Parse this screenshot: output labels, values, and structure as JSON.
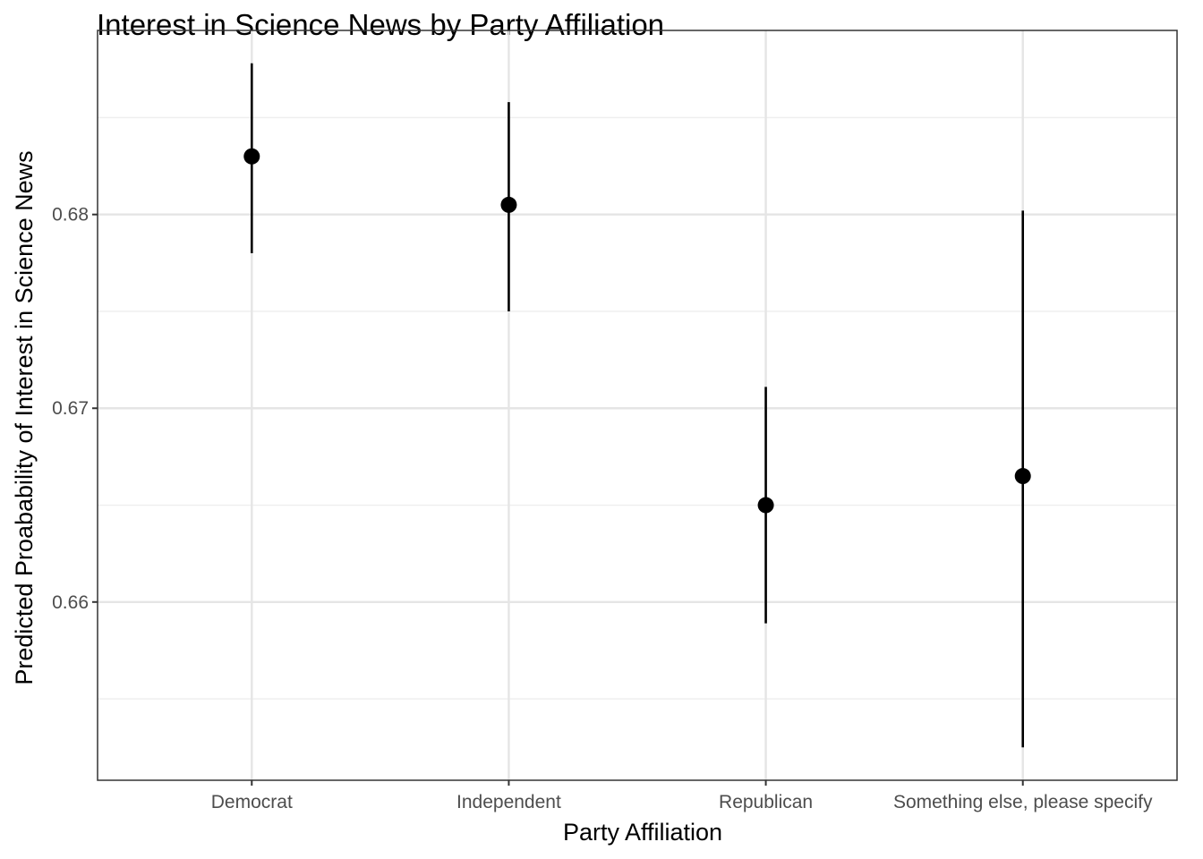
{
  "chart_data": {
    "type": "scatter",
    "title": "Interest in Science News by Party Affiliation",
    "xlabel": "Party Affiliation",
    "ylabel": "Predicted Proabability of Interest in Science News",
    "categories": [
      "Democrat",
      "Independent",
      "Republican",
      "Something else, please specify"
    ],
    "series": [
      {
        "estimate": [
          0.683,
          0.6805,
          0.665,
          0.6665
        ],
        "lower": [
          0.678,
          0.675,
          0.6589,
          0.6525
        ],
        "upper": [
          0.6878,
          0.6858,
          0.6711,
          0.6802
        ]
      }
    ],
    "yticks": [
      "0.66",
      "0.67",
      "0.68"
    ],
    "ytick_values": [
      0.66,
      0.67,
      0.68
    ],
    "ylim": [
      0.6508,
      0.6895
    ],
    "grid": true,
    "point_color": "#000000",
    "errorbar_color": "#000000"
  }
}
